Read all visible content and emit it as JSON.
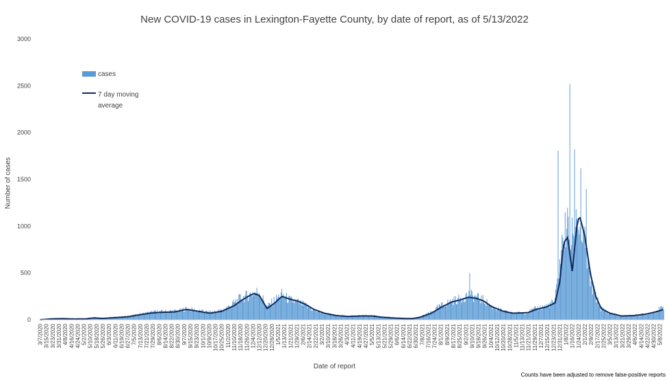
{
  "chart_data": {
    "type": "bar",
    "title": "New COVID-19 cases in Lexington-Fayette County, by date of report, as of 5/13/2022",
    "xlabel": "Date of report",
    "ylabel": "Number of cases",
    "ylim": [
      0,
      3000
    ],
    "yticks": [
      0,
      500,
      1000,
      1500,
      2000,
      2500,
      3000
    ],
    "grid": false,
    "legend_position": "top-left",
    "footnote": "Counts have been adjusted to remove false-positive reports",
    "x_start": "3/7/2020",
    "x_end": "5/13/2022",
    "x_tick_labels": [
      "3/7/2020",
      "3/15/2020",
      "3/23/2020",
      "3/31/2020",
      "4/8/2020",
      "4/16/2020",
      "4/24/2020",
      "5/2/2020",
      "5/10/2020",
      "5/18/2020",
      "5/26/2020",
      "6/3/2020",
      "6/11/2020",
      "6/19/2020",
      "6/27/2020",
      "7/5/2020",
      "7/13/2020",
      "7/21/2020",
      "7/29/2020",
      "8/6/2020",
      "8/14/2020",
      "8/22/2020",
      "8/30/2020",
      "9/7/2020",
      "9/15/2020",
      "9/23/2020",
      "10/1/2020",
      "10/9/2020",
      "10/17/2020",
      "10/25/2020",
      "11/2/2020",
      "11/10/2020",
      "11/18/2020",
      "11/26/2020",
      "12/4/2020",
      "12/12/2020",
      "12/20/2020",
      "12/28/2020",
      "1/5/2021",
      "1/13/2021",
      "1/21/2021",
      "1/29/2021",
      "2/6/2021",
      "2/14/2021",
      "2/22/2021",
      "3/2/2021",
      "3/10/2021",
      "3/18/2021",
      "3/26/2021",
      "4/3/2021",
      "4/11/2021",
      "4/19/2021",
      "4/27/2021",
      "5/5/2021",
      "5/13/2021",
      "5/21/2021",
      "5/29/2021",
      "6/6/2021",
      "6/14/2021",
      "6/22/2021",
      "6/30/2021",
      "7/8/2021",
      "7/16/2021",
      "7/24/2021",
      "8/1/2021",
      "8/9/2021",
      "8/17/2021",
      "8/25/2021",
      "9/2/2021",
      "9/10/2021",
      "9/18/2021",
      "9/26/2021",
      "10/4/2021",
      "10/12/2021",
      "10/20/2021",
      "10/28/2021",
      "11/5/2021",
      "11/13/2021",
      "11/21/2021",
      "11/29/2021",
      "12/7/2021",
      "12/15/2021",
      "12/23/2021",
      "12/31/2021",
      "1/8/2022",
      "1/16/2022",
      "1/24/2022",
      "2/1/2022",
      "2/9/2022",
      "2/17/2022",
      "2/25/2022",
      "3/5/2022",
      "3/13/2022",
      "3/21/2022",
      "3/29/2022",
      "4/6/2022",
      "4/14/2022",
      "4/22/2022",
      "4/30/2022",
      "5/8/2022"
    ],
    "series": [
      {
        "name": "cases",
        "kind": "bar",
        "color": "#5b9bd5",
        "sampled_values": [
          [
            "3/7/2020",
            0
          ],
          [
            "3/20/2020",
            12
          ],
          [
            "4/1/2020",
            15
          ],
          [
            "4/15/2020",
            10
          ],
          [
            "5/1/2020",
            12
          ],
          [
            "5/15/2020",
            25
          ],
          [
            "5/22/2020",
            15
          ],
          [
            "6/10/2020",
            28
          ],
          [
            "7/1/2020",
            40
          ],
          [
            "7/20/2020",
            70
          ],
          [
            "8/1/2020",
            85
          ],
          [
            "8/15/2020",
            90
          ],
          [
            "9/1/2020",
            95
          ],
          [
            "9/10/2020",
            120
          ],
          [
            "9/25/2020",
            95
          ],
          [
            "10/10/2020",
            80
          ],
          [
            "10/25/2020",
            100
          ],
          [
            "11/5/2020",
            150
          ],
          [
            "11/18/2020",
            230
          ],
          [
            "11/28/2020",
            260
          ],
          [
            "12/5/2020",
            290
          ],
          [
            "12/12/2020",
            300
          ],
          [
            "12/22/2020",
            140
          ],
          [
            "1/1/2021",
            210
          ],
          [
            "1/10/2021",
            270
          ],
          [
            "1/20/2021",
            210
          ],
          [
            "1/30/2021",
            190
          ],
          [
            "2/10/2021",
            150
          ],
          [
            "2/20/2021",
            100
          ],
          [
            "3/5/2021",
            70
          ],
          [
            "3/20/2021",
            45
          ],
          [
            "4/5/2021",
            40
          ],
          [
            "4/20/2021",
            45
          ],
          [
            "5/5/2021",
            45
          ],
          [
            "5/20/2021",
            30
          ],
          [
            "6/10/2021",
            20
          ],
          [
            "6/25/2021",
            15
          ],
          [
            "7/5/2021",
            30
          ],
          [
            "7/20/2021",
            80
          ],
          [
            "8/1/2021",
            150
          ],
          [
            "8/15/2021",
            200
          ],
          [
            "8/25/2021",
            220
          ],
          [
            "9/5/2021",
            270
          ],
          [
            "9/15/2021",
            240
          ],
          [
            "9/25/2021",
            210
          ],
          [
            "10/5/2021",
            140
          ],
          [
            "10/20/2021",
            90
          ],
          [
            "11/1/2021",
            70
          ],
          [
            "11/20/2021",
            80
          ],
          [
            "12/1/2021",
            120
          ],
          [
            "12/15/2021",
            150
          ],
          [
            "12/25/2021",
            200
          ],
          [
            "12/31/2021",
            600
          ],
          [
            "1/5/2022",
            900
          ],
          [
            "1/10/2022",
            1000
          ],
          [
            "1/15/2022",
            800
          ],
          [
            "1/20/2022",
            1200
          ],
          [
            "1/25/2022",
            1000
          ],
          [
            "2/1/2022",
            800
          ],
          [
            "2/8/2022",
            400
          ],
          [
            "2/15/2022",
            250
          ],
          [
            "2/22/2022",
            120
          ],
          [
            "3/5/2022",
            70
          ],
          [
            "3/20/2022",
            40
          ],
          [
            "4/5/2022",
            45
          ],
          [
            "4/20/2022",
            60
          ],
          [
            "5/1/2022",
            90
          ],
          [
            "5/13/2022",
            130
          ]
        ],
        "notable_values": [
          [
            "9/7/2021",
            500
          ],
          [
            "1/13/2022",
            2520
          ],
          [
            "1/19/2022",
            1820
          ],
          [
            "12/29/2021",
            1810
          ],
          [
            "1/27/2022",
            1620
          ],
          [
            "2/3/2022",
            1400
          ]
        ]
      },
      {
        "name": "7 day moving average",
        "kind": "line",
        "color": "#0f2a5c",
        "sampled_values": [
          [
            "3/7/2020",
            0
          ],
          [
            "3/22/2020",
            10
          ],
          [
            "4/5/2020",
            12
          ],
          [
            "4/20/2020",
            8
          ],
          [
            "5/5/2020",
            10
          ],
          [
            "5/15/2020",
            20
          ],
          [
            "5/25/2020",
            14
          ],
          [
            "6/10/2020",
            22
          ],
          [
            "6/25/2020",
            30
          ],
          [
            "7/10/2020",
            50
          ],
          [
            "7/25/2020",
            70
          ],
          [
            "8/10/2020",
            80
          ],
          [
            "8/25/2020",
            82
          ],
          [
            "9/10/2020",
            110
          ],
          [
            "9/25/2020",
            90
          ],
          [
            "10/10/2020",
            70
          ],
          [
            "10/25/2020",
            90
          ],
          [
            "11/10/2020",
            150
          ],
          [
            "11/20/2020",
            210
          ],
          [
            "11/28/2020",
            250
          ],
          [
            "12/5/2020",
            280
          ],
          [
            "12/12/2020",
            260
          ],
          [
            "12/22/2020",
            120
          ],
          [
            "1/1/2021",
            180
          ],
          [
            "1/10/2021",
            250
          ],
          [
            "1/20/2021",
            220
          ],
          [
            "1/30/2021",
            200
          ],
          [
            "2/10/2021",
            160
          ],
          [
            "2/20/2021",
            110
          ],
          [
            "3/5/2021",
            70
          ],
          [
            "3/20/2021",
            45
          ],
          [
            "4/5/2021",
            35
          ],
          [
            "4/20/2021",
            40
          ],
          [
            "5/5/2021",
            40
          ],
          [
            "5/20/2021",
            25
          ],
          [
            "6/10/2021",
            15
          ],
          [
            "6/25/2021",
            12
          ],
          [
            "7/5/2021",
            25
          ],
          [
            "7/20/2021",
            70
          ],
          [
            "8/1/2021",
            130
          ],
          [
            "8/15/2021",
            190
          ],
          [
            "8/25/2021",
            210
          ],
          [
            "9/5/2021",
            240
          ],
          [
            "9/15/2021",
            230
          ],
          [
            "9/25/2021",
            200
          ],
          [
            "10/5/2021",
            140
          ],
          [
            "10/20/2021",
            90
          ],
          [
            "11/1/2021",
            70
          ],
          [
            "11/20/2021",
            75
          ],
          [
            "12/1/2021",
            110
          ],
          [
            "12/15/2021",
            140
          ],
          [
            "12/25/2021",
            180
          ],
          [
            "12/31/2021",
            400
          ],
          [
            "1/5/2022",
            820
          ],
          [
            "1/10/2022",
            880
          ],
          [
            "1/16/2022",
            520
          ],
          [
            "1/22/2022",
            1000
          ],
          [
            "1/25/2022",
            1120
          ],
          [
            "2/1/2022",
            900
          ],
          [
            "2/8/2022",
            500
          ],
          [
            "2/15/2022",
            250
          ],
          [
            "2/22/2022",
            120
          ],
          [
            "3/5/2022",
            70
          ],
          [
            "3/20/2022",
            40
          ],
          [
            "4/5/2022",
            45
          ],
          [
            "4/20/2022",
            60
          ],
          [
            "5/1/2022",
            80
          ],
          [
            "5/13/2022",
            110
          ]
        ]
      }
    ]
  }
}
